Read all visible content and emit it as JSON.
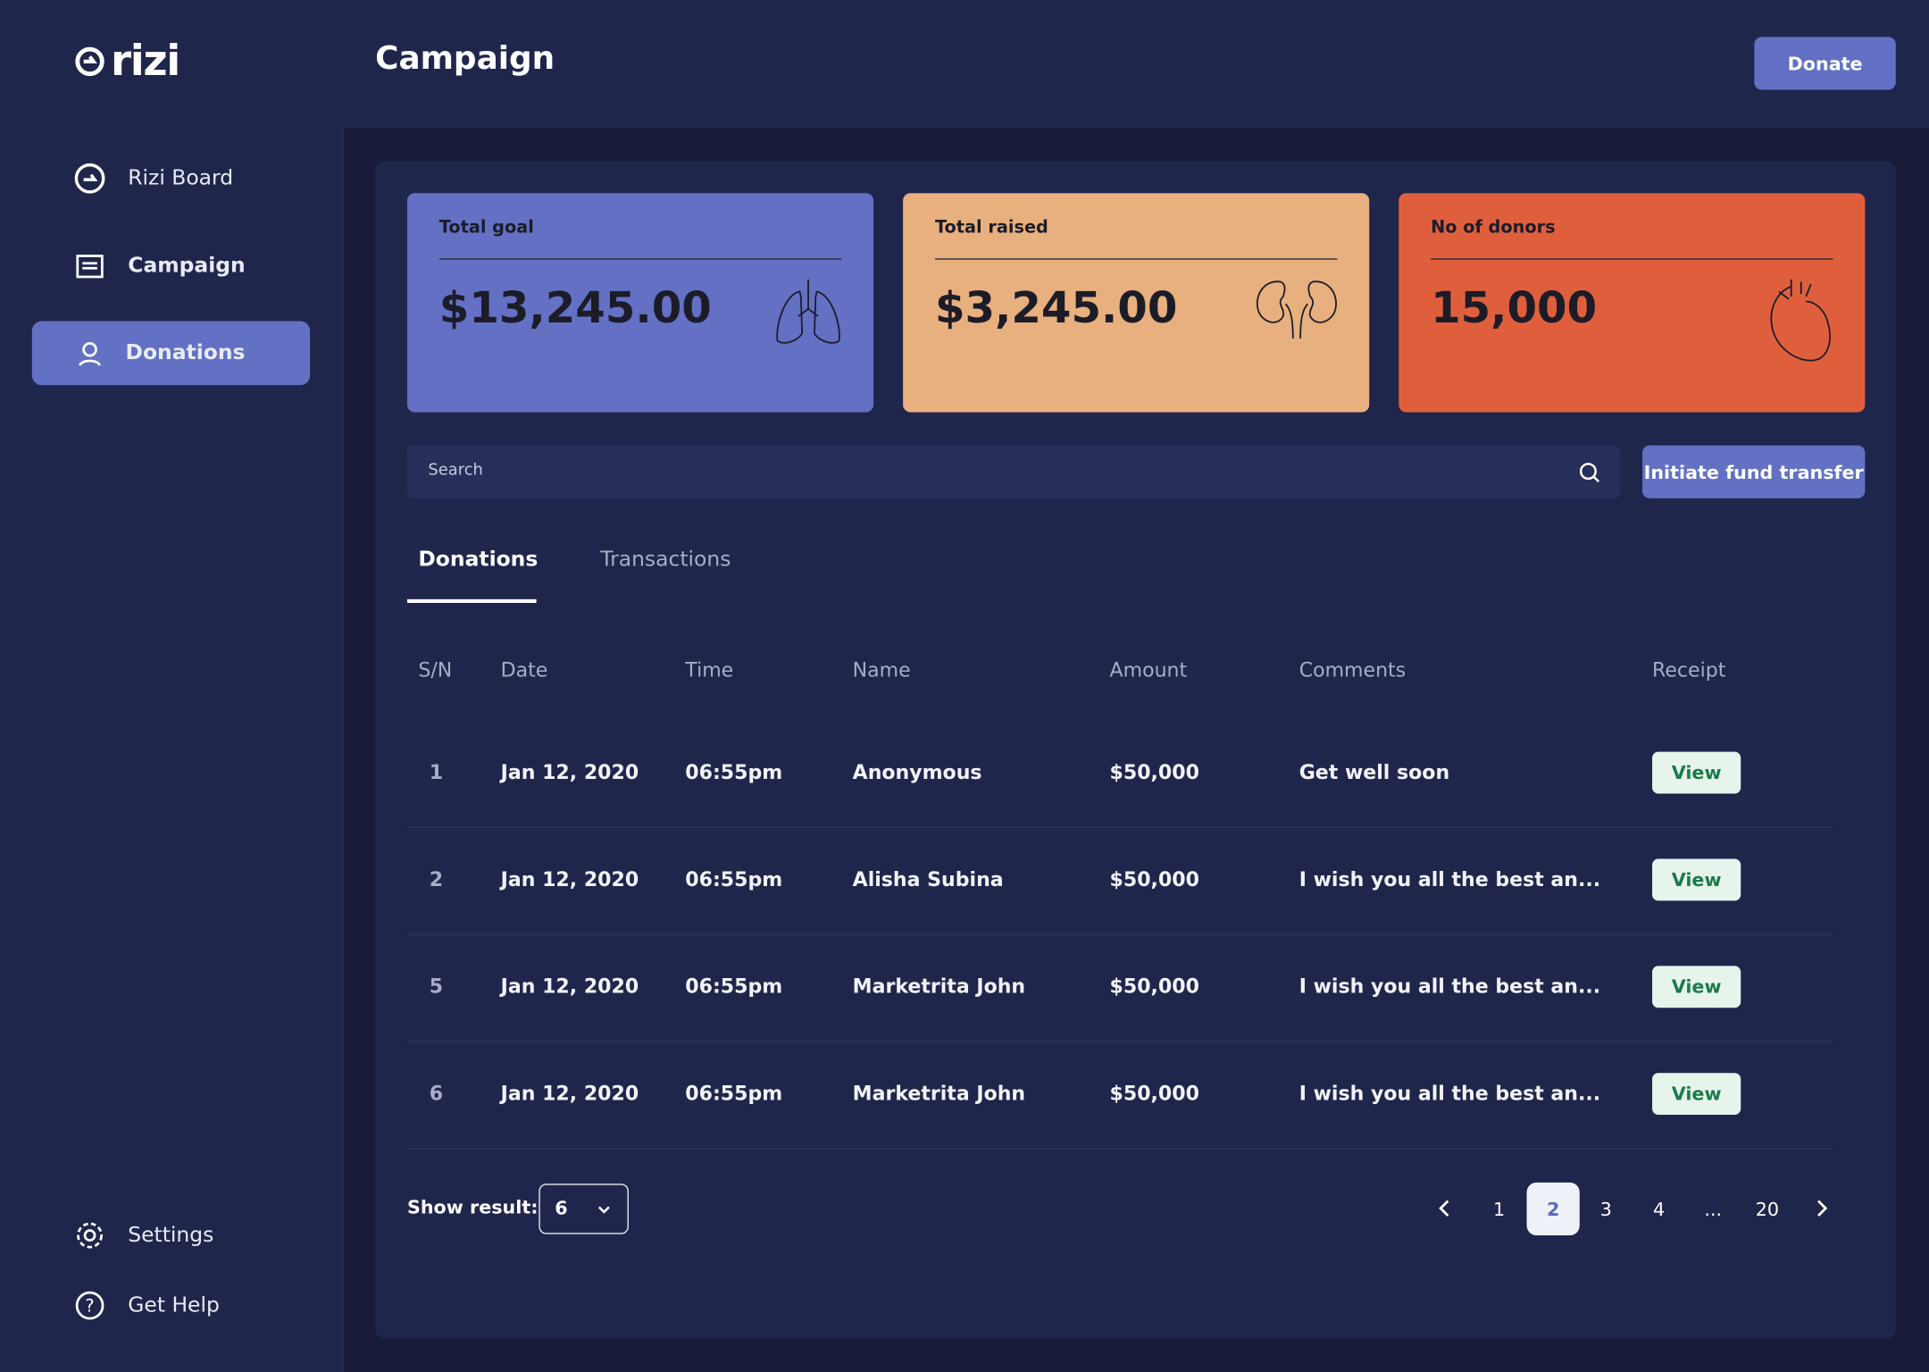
{
  "sidebar": {
    "logo": "rizi",
    "nav": [
      "Rizi Board",
      "Campaign",
      "Donations"
    ],
    "footer_nav": [
      "Settings",
      "Get Help"
    ]
  },
  "header": {
    "title": "Campaign",
    "button": "Donate"
  },
  "cards": [
    {
      "label": "Total goal",
      "value": "$13,245.00"
    },
    {
      "label": "Total raised",
      "value": "$3,245.00"
    },
    {
      "label": "No of donors",
      "value": "15,000"
    }
  ],
  "search": {
    "placeholder": "Search",
    "button": "Initiate fund transfer"
  },
  "tabs": [
    "Donations",
    "Transactions"
  ],
  "table": {
    "columns": [
      "S/N",
      "Date",
      "Time",
      "Name",
      "Amount",
      "Comments",
      "Receipt"
    ],
    "rows": [
      [
        "1",
        "Jan 12, 2020",
        "06:55pm",
        "Anonymous",
        "$50,000",
        "Get well soon",
        "View"
      ],
      [
        "2",
        "Jan 12, 2020",
        "06:55pm",
        "Alisha Subina",
        "$50,000",
        "I wish you all the best an...",
        "View"
      ],
      [
        "5",
        "Jan 12, 2020",
        "06:55pm",
        "Marketrita John",
        "$50,000",
        "I wish you all the best an...",
        "View"
      ],
      [
        "6",
        "Jan 12, 2020",
        "06:55pm",
        "Marketrita John",
        "$50,000",
        "I wish you all the best an...",
        "View"
      ]
    ]
  },
  "pagination": {
    "label": "Show result:",
    "page_size": "6",
    "pages": [
      "1",
      "2",
      "3",
      "4",
      "...",
      "20"
    ]
  }
}
